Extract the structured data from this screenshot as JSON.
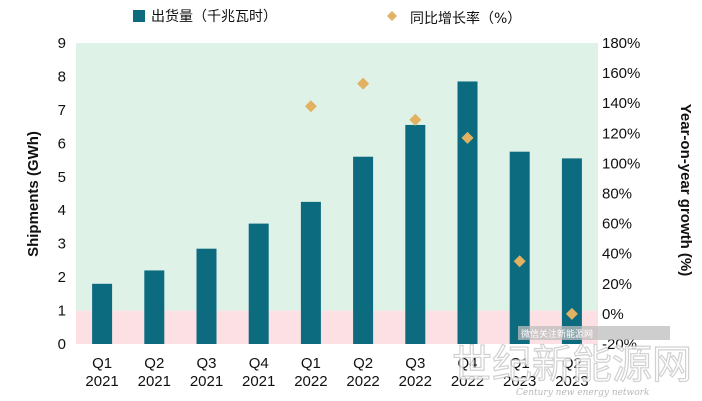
{
  "legend": {
    "bar_label": "出货量（千兆瓦时）",
    "marker_label": "同比增长率（%）"
  },
  "axes": {
    "left_title": "Shipments (GWh)",
    "right_title": "Year-on-year growth (%)"
  },
  "chart_data": {
    "type": "bar",
    "categories": [
      [
        "Q1",
        "2021"
      ],
      [
        "Q2",
        "2021"
      ],
      [
        "Q3",
        "2021"
      ],
      [
        "Q4",
        "2021"
      ],
      [
        "Q1",
        "2022"
      ],
      [
        "Q2",
        "2022"
      ],
      [
        "Q3",
        "2022"
      ],
      [
        "Q4",
        "2022"
      ],
      [
        "Q1",
        "2023"
      ],
      [
        "Q2",
        "2023"
      ]
    ],
    "series": [
      {
        "name": "出货量（千兆瓦时）",
        "type": "bar",
        "axis": "left",
        "color": "#0d6b80",
        "values": [
          1.8,
          2.2,
          2.85,
          3.6,
          4.25,
          5.6,
          6.55,
          7.85,
          5.75,
          5.55
        ]
      },
      {
        "name": "同比增长率（%）",
        "type": "scatter",
        "axis": "right",
        "color": "#e0b262",
        "marker": "diamond",
        "values": [
          null,
          null,
          null,
          null,
          138,
          153,
          129,
          117,
          35,
          0
        ]
      }
    ],
    "left_axis": {
      "ylim": [
        0,
        9
      ],
      "ticks": [
        "0",
        "1",
        "2",
        "3",
        "4",
        "5",
        "6",
        "7",
        "8",
        "9"
      ]
    },
    "right_axis": {
      "ylim": [
        -20,
        180
      ],
      "ticks": [
        "-20%",
        "0%",
        "20%",
        "40%",
        "60%",
        "80%",
        "100%",
        "120%",
        "140%",
        "160%",
        "180%"
      ]
    },
    "background_bands": [
      {
        "from": 0,
        "to": 1,
        "axis": "left",
        "color": "#fde0e4"
      },
      {
        "from": 1,
        "to": 9,
        "axis": "left",
        "color": "#dff2e7"
      }
    ],
    "legend_position": "top",
    "grid": false
  },
  "watermark": {
    "big_text": "世纪新能源网",
    "small_text": "Century new energy network",
    "tag_text": "微信关注新能源网"
  }
}
